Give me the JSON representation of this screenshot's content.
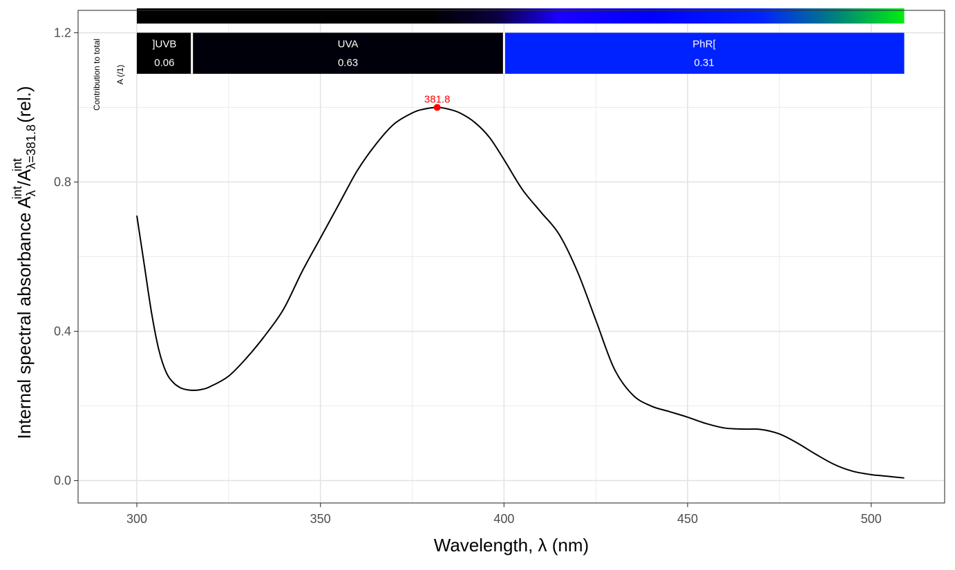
{
  "chart_data": {
    "type": "line",
    "title": "",
    "xlabel": "Wavelength, λ (nm)",
    "ylabel": {
      "prefix": "Internal  spectral  absorbance  ",
      "symbol": "A",
      "sub1": "λ",
      "sup": "int",
      "sub2": "λ=381.8",
      "suffix": "  (rel.)"
    },
    "xlim": [
      284,
      520
    ],
    "ylim": [
      -0.06,
      1.26
    ],
    "x_ticks": [
      300,
      350,
      400,
      450,
      500
    ],
    "y_ticks": [
      0.0,
      0.4,
      0.8,
      1.2
    ],
    "x_tick_labels": [
      "300",
      "350",
      "400",
      "450",
      "500"
    ],
    "y_tick_labels": [
      "0.0",
      "0.4",
      "0.8",
      "1.2"
    ],
    "grid": true,
    "series": [
      {
        "color": "#000000",
        "x": [
          300,
          302,
          304,
          306,
          308,
          310,
          312,
          314,
          316,
          318,
          320,
          325,
          330,
          335,
          340,
          345,
          350,
          355,
          360,
          365,
          370,
          375,
          378,
          381.8,
          385,
          388,
          392,
          396,
          400,
          405,
          410,
          415,
          420,
          425,
          430,
          435,
          440,
          445,
          450,
          455,
          460,
          465,
          470,
          475,
          480,
          485,
          490,
          495,
          500,
          505,
          509
        ],
        "y": [
          0.71,
          0.58,
          0.45,
          0.35,
          0.29,
          0.262,
          0.248,
          0.243,
          0.242,
          0.245,
          0.252,
          0.28,
          0.33,
          0.39,
          0.46,
          0.56,
          0.65,
          0.74,
          0.83,
          0.9,
          0.955,
          0.985,
          0.995,
          1.0,
          0.995,
          0.985,
          0.96,
          0.92,
          0.86,
          0.78,
          0.72,
          0.66,
          0.56,
          0.43,
          0.3,
          0.23,
          0.2,
          0.185,
          0.17,
          0.153,
          0.141,
          0.138,
          0.137,
          0.125,
          0.1,
          0.07,
          0.043,
          0.025,
          0.016,
          0.011,
          0.007
        ]
      }
    ],
    "peak": {
      "x": 381.8,
      "y": 1.0,
      "label": "381.8",
      "color": "#ff0000"
    },
    "color_bar": {
      "y": 1.245,
      "x_start": 300,
      "x_end": 509,
      "stops": [
        {
          "wl": 300,
          "color": "#000000"
        },
        {
          "wl": 380,
          "color": "#000000"
        },
        {
          "wl": 398,
          "color": "#0b0040"
        },
        {
          "wl": 415,
          "color": "#1a00ff"
        },
        {
          "wl": 440,
          "color": "#0000ff"
        },
        {
          "wl": 470,
          "color": "#0022ff"
        },
        {
          "wl": 490,
          "color": "#007f7f"
        },
        {
          "wl": 509,
          "color": "#00ee11"
        }
      ]
    },
    "band_label": {
      "line1": "Contribution  to  total",
      "line2": "A  (/1)"
    },
    "bands": [
      {
        "name": "]UVB",
        "value": "0.06",
        "x_start": 300,
        "x_end": 315,
        "color": "#000000"
      },
      {
        "name": "UVA",
        "value": "0.63",
        "x_start": 315,
        "x_end": 400,
        "color": "#00000a"
      },
      {
        "name": "PhR[",
        "value": "0.31",
        "x_start": 400,
        "x_end": 509,
        "color": "#0022ff"
      }
    ],
    "bands_y": [
      1.09,
      1.2
    ]
  }
}
